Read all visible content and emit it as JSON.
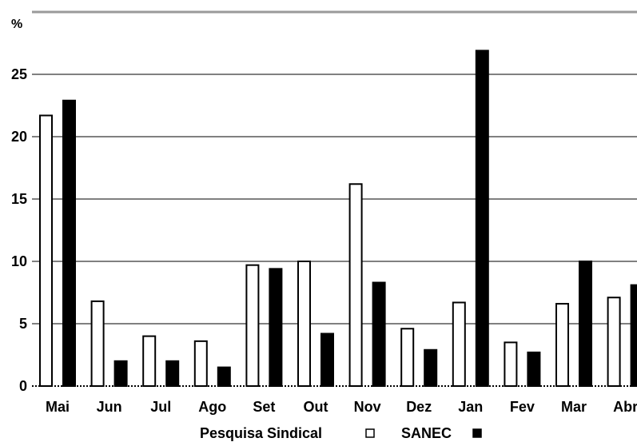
{
  "chart_data": {
    "type": "bar",
    "ylabel": "%",
    "ylim": [
      0,
      30
    ],
    "yticks": [
      0,
      5,
      10,
      15,
      20,
      25
    ],
    "grid": true,
    "legend_position": "bottom",
    "categories": [
      "Mai",
      "Jun",
      "Jul",
      "Ago",
      "Set",
      "Out",
      "Nov",
      "Dez",
      "Jan",
      "Fev",
      "Mar",
      "Abr"
    ],
    "series": [
      {
        "name": "Pesquisa Sindical",
        "color": "#ffffff",
        "values": [
          21.7,
          6.8,
          4.0,
          3.6,
          9.7,
          10.0,
          16.2,
          4.6,
          6.7,
          3.5,
          6.6,
          7.1
        ]
      },
      {
        "name": "SANEC",
        "color": "#000000",
        "values": [
          22.9,
          2.0,
          2.0,
          1.5,
          9.4,
          4.2,
          8.3,
          2.9,
          26.9,
          2.7,
          10.0,
          8.1
        ]
      }
    ]
  }
}
